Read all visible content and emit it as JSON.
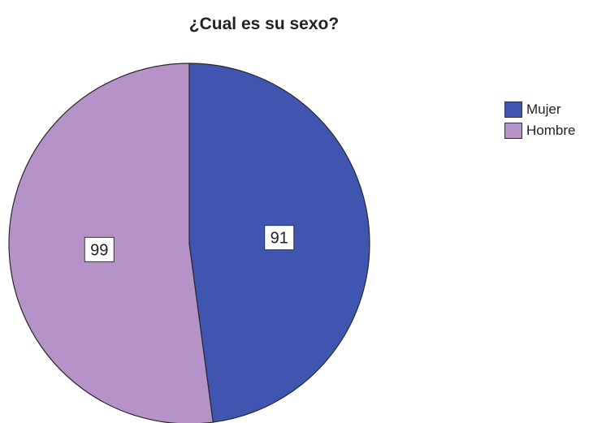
{
  "chart_data": {
    "type": "pie",
    "title": "¿Cual es su sexo?",
    "slices": [
      {
        "label": "Mujer",
        "value": 91,
        "color": "#3F55AF"
      },
      {
        "label": "Hombre",
        "value": 99,
        "color": "#B592C7"
      }
    ],
    "legend_position": "top-right",
    "data_labels": [
      "91",
      "99"
    ]
  }
}
